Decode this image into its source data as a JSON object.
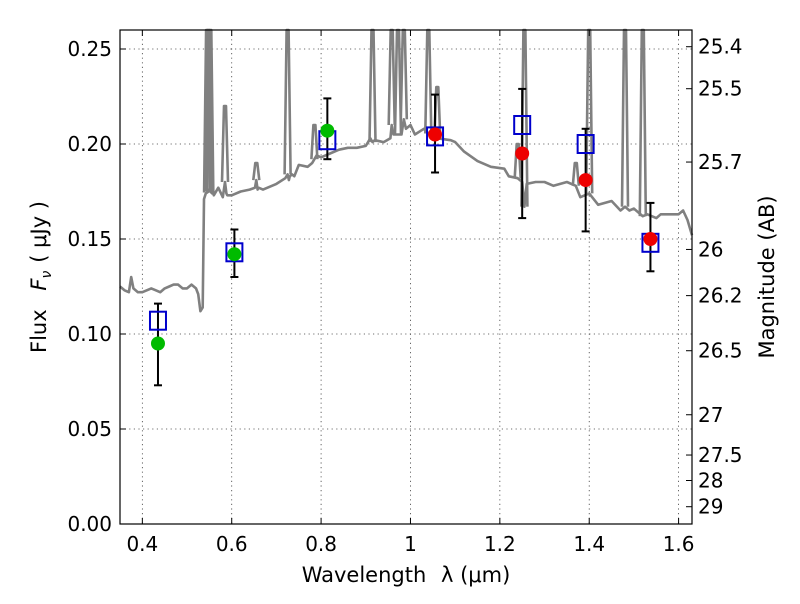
{
  "chart_data": {
    "type": "scatter",
    "title": "",
    "xlabel": "Wavelength",
    "xlabel_symbol": "λ (μm)",
    "ylabel": "Flux",
    "ylabel_symbol": "F",
    "ylabel_symbol_sub": "ν",
    "ylabel_unit": "( μJy )",
    "y2label": "Magnitude (AB)",
    "xlim": [
      0.35,
      1.63
    ],
    "ylim": [
      0.0,
      0.26
    ],
    "x_ticks": [
      0.4,
      0.6,
      0.8,
      1.0,
      1.2,
      1.4,
      1.6
    ],
    "x_tick_labels": [
      "0.4",
      "0.6",
      "0.8",
      "1",
      "1.2",
      "1.4",
      "1.6"
    ],
    "y_ticks": [
      0.0,
      0.05,
      0.1,
      0.15,
      0.2,
      0.25
    ],
    "y_tick_labels": [
      "0.00",
      "0.05",
      "0.10",
      "0.15",
      "0.20",
      "0.25"
    ],
    "y2_ticks": [
      {
        "label": "25.4",
        "flux": 0.2512
      },
      {
        "label": "25.5",
        "flux": 0.2291
      },
      {
        "label": "25.7",
        "flux": 0.1905
      },
      {
        "label": "26",
        "flux": 0.1445
      },
      {
        "label": "26.2",
        "flux": 0.1202
      },
      {
        "label": "26.5",
        "flux": 0.0912
      },
      {
        "label": "27",
        "flux": 0.0575
      },
      {
        "label": "27.5",
        "flux": 0.0363
      },
      {
        "label": "28",
        "flux": 0.0229
      },
      {
        "label": "29",
        "flux": 0.0091
      }
    ],
    "grid": true,
    "colors": {
      "green": "#00bb00",
      "red": "#ee0000",
      "blue_square": "#0000cc",
      "model": "#808080",
      "error": "#000000"
    },
    "observed_points": [
      {
        "x": 0.435,
        "y": 0.095,
        "yerr_low": 0.073,
        "yerr_high": 0.116,
        "color": "green"
      },
      {
        "x": 0.606,
        "y": 0.142,
        "yerr_low": 0.13,
        "yerr_high": 0.155,
        "color": "green"
      },
      {
        "x": 0.814,
        "y": 0.207,
        "yerr_low": 0.192,
        "yerr_high": 0.224,
        "color": "green"
      },
      {
        "x": 1.055,
        "y": 0.205,
        "yerr_low": 0.185,
        "yerr_high": 0.226,
        "color": "red"
      },
      {
        "x": 1.25,
        "y": 0.195,
        "yerr_low": 0.161,
        "yerr_high": 0.229,
        "color": "red"
      },
      {
        "x": 1.392,
        "y": 0.181,
        "yerr_low": 0.154,
        "yerr_high": 0.208,
        "color": "red"
      },
      {
        "x": 1.537,
        "y": 0.15,
        "yerr_low": 0.133,
        "yerr_high": 0.169,
        "color": "red"
      }
    ],
    "model_points": [
      {
        "x": 0.435,
        "y": 0.107
      },
      {
        "x": 0.606,
        "y": 0.143
      },
      {
        "x": 0.814,
        "y": 0.202
      },
      {
        "x": 1.055,
        "y": 0.204
      },
      {
        "x": 1.25,
        "y": 0.21
      },
      {
        "x": 1.392,
        "y": 0.2
      },
      {
        "x": 1.537,
        "y": 0.148
      }
    ],
    "model_spectrum": {
      "x": [
        0.35,
        0.36,
        0.37,
        0.375,
        0.38,
        0.39,
        0.4,
        0.41,
        0.42,
        0.43,
        0.44,
        0.45,
        0.46,
        0.47,
        0.48,
        0.49,
        0.5,
        0.51,
        0.52,
        0.525,
        0.53,
        0.535,
        0.538,
        0.542,
        0.548,
        0.55,
        0.552,
        0.556,
        0.558,
        0.56,
        0.57,
        0.58,
        0.585,
        0.588,
        0.59,
        0.6,
        0.62,
        0.64,
        0.652,
        0.655,
        0.658,
        0.66,
        0.67,
        0.68,
        0.7,
        0.72,
        0.725,
        0.728,
        0.73,
        0.735,
        0.74,
        0.75,
        0.77,
        0.78,
        0.785,
        0.79,
        0.8,
        0.82,
        0.84,
        0.86,
        0.88,
        0.9,
        0.91,
        0.915,
        0.92,
        0.94,
        0.955,
        0.958,
        0.962,
        0.97,
        0.98,
        0.985,
        0.99,
        1.0,
        1.01,
        1.03,
        1.05,
        1.06,
        1.09,
        1.1,
        1.12,
        1.15,
        1.18,
        1.21,
        1.22,
        1.24,
        1.25,
        1.255,
        1.26,
        1.28,
        1.3,
        1.32,
        1.35,
        1.37,
        1.38,
        1.4,
        1.42,
        1.45,
        1.47,
        1.48,
        1.49,
        1.5,
        1.52,
        1.53,
        1.55,
        1.56,
        1.58,
        1.6,
        1.61,
        1.62,
        1.63
      ],
      "y": [
        0.125,
        0.123,
        0.122,
        0.13,
        0.124,
        0.122,
        0.122,
        0.123,
        0.124,
        0.123,
        0.122,
        0.124,
        0.125,
        0.126,
        0.126,
        0.124,
        0.124,
        0.126,
        0.124,
        0.121,
        0.112,
        0.114,
        0.171,
        0.174,
        0.175,
        0.176,
        0.175,
        0.174,
        0.176,
        0.173,
        0.177,
        0.172,
        0.18,
        0.174,
        0.173,
        0.173,
        0.175,
        0.176,
        0.177,
        0.181,
        0.176,
        0.177,
        0.176,
        0.177,
        0.179,
        0.182,
        0.184,
        0.181,
        0.183,
        0.184,
        0.183,
        0.189,
        0.188,
        0.19,
        0.192,
        0.194,
        0.193,
        0.195,
        0.197,
        0.198,
        0.198,
        0.199,
        0.203,
        0.201,
        0.202,
        0.201,
        0.203,
        0.21,
        0.205,
        0.205,
        0.205,
        0.213,
        0.208,
        0.21,
        0.205,
        0.208,
        0.203,
        0.203,
        0.202,
        0.201,
        0.196,
        0.191,
        0.188,
        0.187,
        0.183,
        0.182,
        0.18,
        0.167,
        0.179,
        0.18,
        0.18,
        0.178,
        0.18,
        0.178,
        0.172,
        0.174,
        0.168,
        0.17,
        0.165,
        0.167,
        0.165,
        0.166,
        0.162,
        0.163,
        0.161,
        0.163,
        0.163,
        0.163,
        0.165,
        0.16,
        0.152
      ]
    },
    "emission_lines": [
      {
        "x": 0.545,
        "top": 0.3
      },
      {
        "x": 0.548,
        "top": 0.27
      },
      {
        "x": 0.552,
        "top": 0.3
      },
      {
        "x": 0.585,
        "top": 0.22
      },
      {
        "x": 0.655,
        "top": 0.19
      },
      {
        "x": 0.725,
        "top": 0.3
      },
      {
        "x": 0.785,
        "top": 0.21
      },
      {
        "x": 0.915,
        "top": 0.3
      },
      {
        "x": 0.958,
        "top": 0.3
      },
      {
        "x": 0.972,
        "top": 0.3
      },
      {
        "x": 0.985,
        "top": 0.3
      },
      {
        "x": 1.04,
        "top": 0.3
      },
      {
        "x": 1.06,
        "top": 0.23
      },
      {
        "x": 1.255,
        "top": 0.3
      },
      {
        "x": 1.24,
        "top": 0.2
      },
      {
        "x": 1.37,
        "top": 0.19
      },
      {
        "x": 1.4,
        "top": 0.3
      },
      {
        "x": 1.48,
        "top": 0.3
      },
      {
        "x": 1.52,
        "top": 0.3
      }
    ]
  }
}
